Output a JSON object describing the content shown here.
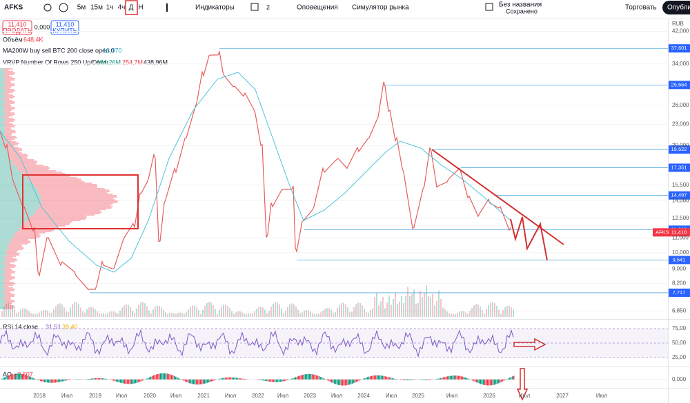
{
  "toolbar": {
    "symbol": "AFKS",
    "intervals": [
      "5м",
      "15м",
      "1ч",
      "4ч",
      "Д",
      "Н"
    ],
    "indicators": "Индикаторы",
    "layouts": "2",
    "alerts": "Оповещения",
    "replay": "Симулятор рынка",
    "layout_name": "Без названия",
    "saved": "Сохранено",
    "trade": "Торговать",
    "publish": "Опубликовать"
  },
  "order": {
    "sell_price": "11,410",
    "sell": "ПРОДАТЬ",
    "spread": "0,000",
    "buy_price": "11,410",
    "buy": "КУПИТЬ"
  },
  "legend": {
    "volume": {
      "name": "Объём",
      "value": "648,4K"
    },
    "ma": {
      "name": "MA200W buy sell BTC 200 close open 0",
      "value": "13,070"
    },
    "vrvp": {
      "name": "VRVP Number Of Rows 250 Up/Down",
      "up": "184,26M",
      "down": "254,7M",
      "total": "438,96M"
    }
  },
  "price_axis": {
    "currency": "RUB",
    "scale": "log",
    "range": [
      6540,
      45000
    ],
    "ticks": [
      {
        "value": 42000,
        "label": "42,000"
      },
      {
        "value": 34000,
        "label": "34,000"
      },
      {
        "value": 26000,
        "label": "26,000"
      },
      {
        "value": 23000,
        "label": "23,000"
      },
      {
        "value": 20000,
        "label": "20,000"
      },
      {
        "value": 15500,
        "label": "15,500"
      },
      {
        "value": 14000,
        "label": "14,000"
      },
      {
        "value": 12500,
        "label": "12,500"
      },
      {
        "value": 11000,
        "label": "11,000"
      },
      {
        "value": 10000,
        "label": "10,000"
      },
      {
        "value": 9000,
        "label": "9,000"
      },
      {
        "value": 8200,
        "label": "8,200"
      },
      {
        "value": 6850,
        "label": "6,850"
      }
    ],
    "levels": [
      {
        "value": 37601,
        "label": "37,601"
      },
      {
        "value": 29664,
        "label": "29,664"
      },
      {
        "value": 19522,
        "label": "19,522"
      },
      {
        "value": 17351,
        "label": "17,351"
      },
      {
        "value": 14497,
        "label": "14,497"
      },
      {
        "value": 11613,
        "label": "11,613"
      },
      {
        "value": 9541,
        "label": "9,541"
      },
      {
        "value": 7717,
        "label": "7,717"
      }
    ],
    "last": {
      "value": 11410,
      "label": "11,410"
    }
  },
  "rsi": {
    "name": "RSI 14 close",
    "value": "31,51",
    "ma_value": "39,40",
    "range": [
      12,
      88
    ],
    "ticks": [
      {
        "value": 75,
        "label": "75,00"
      },
      {
        "value": 50,
        "label": "50,00"
      },
      {
        "value": 25,
        "label": "25,00"
      }
    ]
  },
  "ao": {
    "name": "AO",
    "value": "−0,607",
    "range": [
      -2,
      3
    ],
    "ticks": [
      {
        "value": 0,
        "label": "0,000"
      }
    ]
  },
  "time_axis": [
    "2018",
    "Июл",
    "2019",
    "Июл",
    "2020",
    "Июл",
    "2021",
    "Июл",
    "2022",
    "Июл",
    "2023",
    "Июл",
    "2024",
    "Июл",
    "2025",
    "Июл",
    "2026",
    "Июл",
    "2027",
    "Июл"
  ]
}
